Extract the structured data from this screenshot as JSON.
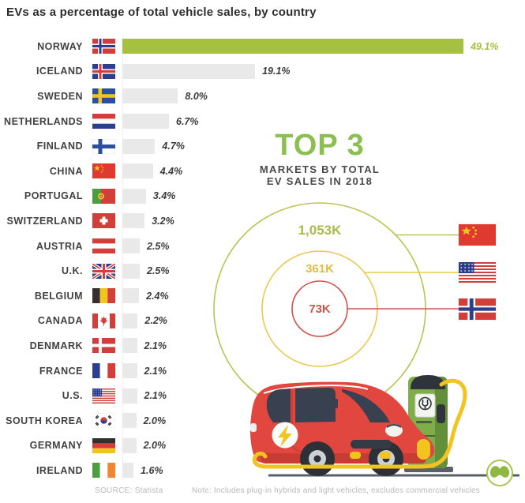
{
  "title": "EVs as a percentage of total vehicle sales, by country",
  "chart_data": [
    {
      "type": "bar",
      "orientation": "horizontal",
      "title": "EVs as a percentage of total vehicle sales, by country",
      "unit": "% of total vehicle sales",
      "categories": [
        "NORWAY",
        "ICELAND",
        "SWEDEN",
        "NETHERLANDS",
        "FINLAND",
        "CHINA",
        "PORTUGAL",
        "SWITZERLAND",
        "AUSTRIA",
        "U.K.",
        "BELGIUM",
        "CANADA",
        "DENMARK",
        "FRANCE",
        "U.S.",
        "SOUTH KOREA",
        "GERMANY",
        "IRELAND"
      ],
      "values": [
        49.1,
        19.1,
        8.0,
        6.7,
        4.7,
        4.4,
        3.4,
        3.2,
        2.5,
        2.5,
        2.4,
        2.2,
        2.1,
        2.1,
        2.1,
        2.0,
        2.0,
        1.6
      ],
      "value_labels": [
        "49.1%",
        "19.1%",
        "8.0%",
        "6.7%",
        "4.7%",
        "4.4%",
        "3.4%",
        "3.2%",
        "2.5%",
        "2.5%",
        "2.4%",
        "2.2%",
        "2.1%",
        "2.1%",
        "2.1%",
        "2.0%",
        "2.0%",
        "1.6%"
      ],
      "flags": [
        "norway",
        "iceland",
        "sweden",
        "netherlands",
        "finland",
        "china",
        "portugal",
        "switzerland",
        "austria",
        "uk",
        "belgium",
        "canada",
        "denmark",
        "france",
        "us",
        "south-korea",
        "germany",
        "ireland"
      ],
      "xlim": [
        0,
        50
      ],
      "grid": false,
      "highlight": {
        "category": "NORWAY",
        "color": "#a6c13f"
      },
      "bar_color": "#e9e9e9"
    },
    {
      "type": "bubble",
      "title": "TOP 3 markets by total EV sales in 2018",
      "unit": "thousand vehicles",
      "series": [
        {
          "name": "CHINA",
          "flag": "china",
          "value_label": "1,053K",
          "value_thousands": 1053,
          "ring_color": "#b9c654",
          "label_color": "#a9bc48",
          "radius_px": 134
        },
        {
          "name": "U.S.",
          "flag": "us",
          "value_label": "361K",
          "value_thousands": 361,
          "ring_color": "#eac94e",
          "label_color": "#e0bc3f",
          "radius_px": 73
        },
        {
          "name": "NORWAY",
          "flag": "norway",
          "value_label": "73K",
          "value_thousands": 73,
          "ring_color": "#d2534b",
          "label_color": "#d2534b",
          "radius_px": 35
        }
      ],
      "legend_position": "right-flags"
    }
  ],
  "top3": {
    "heading": "TOP 3",
    "subtitle_line1": "MARKETS BY TOTAL",
    "subtitle_line2": "EV SALES IN 2018",
    "heading_color": "#8cbf52"
  },
  "footer": {
    "source": "SOURCE: Statista",
    "note": "Note: Includes plug-in hybrids and light vehicles, excludes commercial vehicles"
  },
  "colors": {
    "highlight_green": "#a6c13f",
    "bar_gray": "#e9e9e9",
    "text_dark": "#3b3b3b",
    "muted_gray": "#b9b9b9",
    "car_red": "#e1473e",
    "station_green": "#7fad49",
    "cable_yellow": "#f2c41f"
  }
}
